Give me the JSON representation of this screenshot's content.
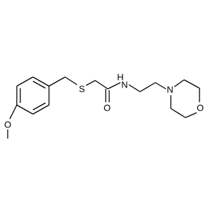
{
  "atoms": {
    "methoxy_o": "O",
    "sulfur": "S",
    "carbonyl_o": "O",
    "amide_n": "N",
    "amide_h": "H",
    "morpholine_n": "N",
    "morpholine_o": "O"
  }
}
